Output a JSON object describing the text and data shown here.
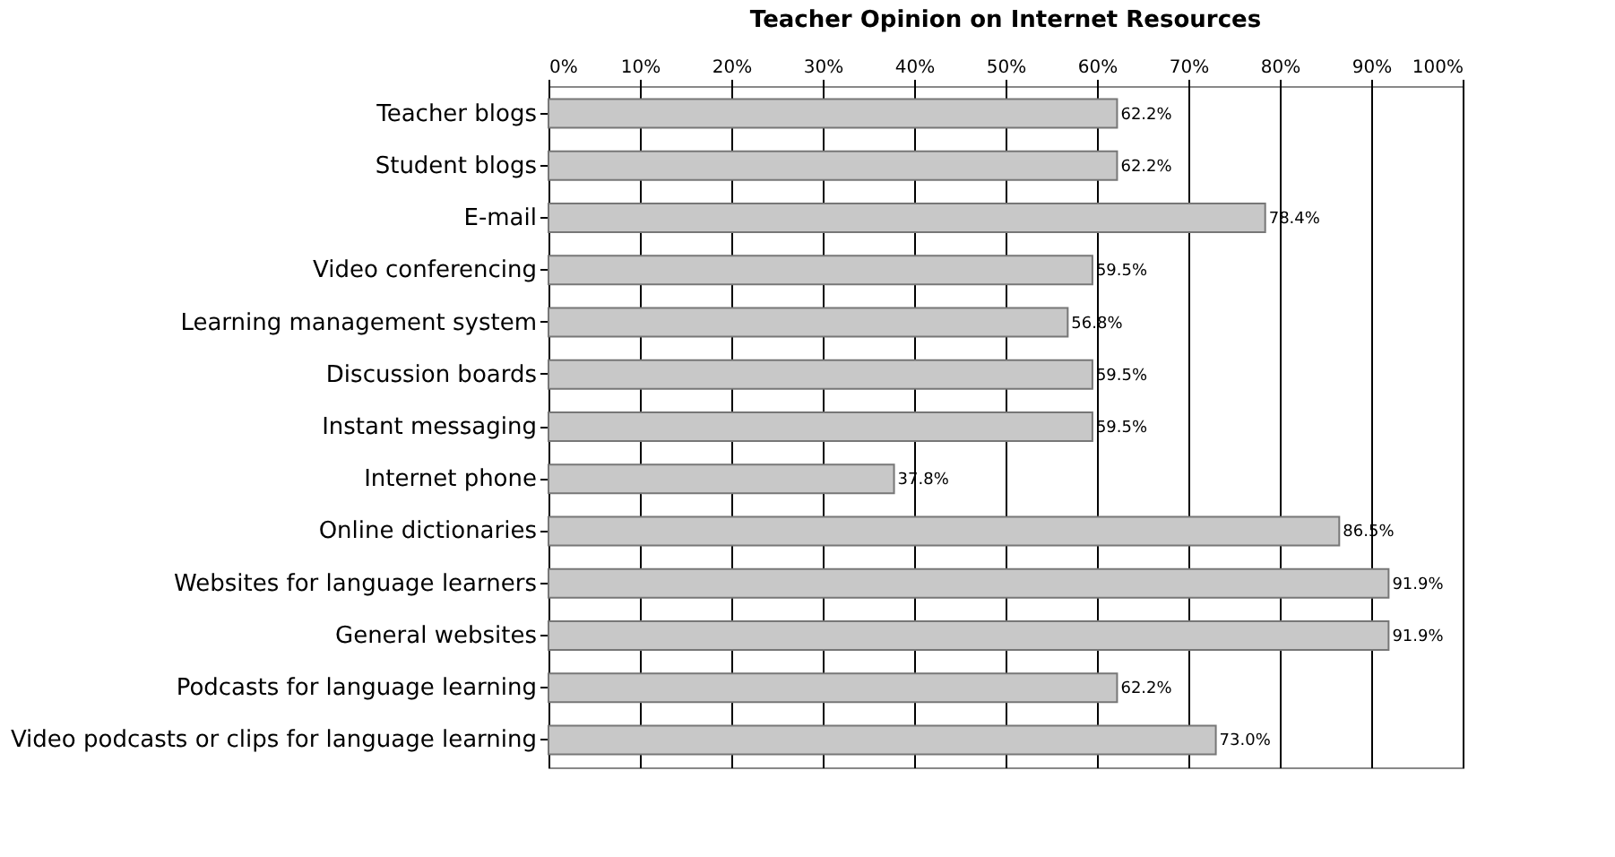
{
  "chart_data": {
    "type": "bar",
    "orientation": "horizontal",
    "title": "Teacher Opinion on Internet Resources",
    "categories": [
      "Teacher blogs",
      "Student blogs",
      "E-mail",
      "Video conferencing",
      "Learning management system",
      "Discussion boards",
      "Instant messaging",
      "Internet phone",
      "Online dictionaries",
      "Websites for language learners",
      "General websites",
      "Podcasts for language learning",
      "Video podcasts or clips for language learning"
    ],
    "values": [
      62.2,
      62.2,
      78.4,
      59.5,
      56.8,
      59.5,
      59.5,
      37.8,
      86.5,
      91.9,
      91.9,
      62.2,
      73.0
    ],
    "value_labels": [
      "62.2%",
      "62.2%",
      "78.4%",
      "59.5%",
      "56.8%",
      "59.5%",
      "59.5%",
      "37.8%",
      "86.5%",
      "91.9%",
      "91.9%",
      "62.2%",
      "73.0%"
    ],
    "color": "#c8c8c8",
    "xlim": [
      0,
      100
    ],
    "xticks": [
      {
        "value": 0,
        "label": "0%"
      },
      {
        "value": 10,
        "label": "10%"
      },
      {
        "value": 20,
        "label": "20%"
      },
      {
        "value": 30,
        "label": "30%"
      },
      {
        "value": 40,
        "label": "40%"
      },
      {
        "value": 50,
        "label": "50%"
      },
      {
        "value": 60,
        "label": "60%"
      },
      {
        "value": 70,
        "label": "70%"
      },
      {
        "value": 80,
        "label": "80%"
      },
      {
        "value": 90,
        "label": "90%"
      },
      {
        "value": 100,
        "label": "100%"
      }
    ],
    "grid": "x"
  }
}
